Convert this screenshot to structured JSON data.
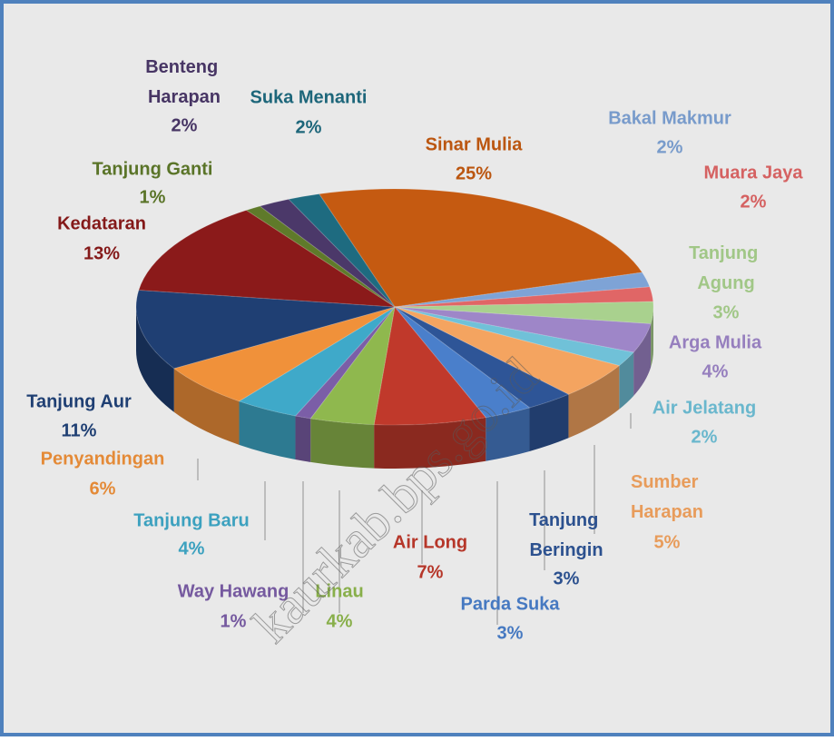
{
  "chart_data": {
    "type": "pie3d",
    "categories": [
      "Sinar Mulia",
      "Bakal Makmur",
      "Muara Jaya",
      "Tanjung Agung",
      "Arga Mulia",
      "Air Jelatang",
      "Sumber Harapan",
      "Tanjung Beringin",
      "Parda Suka",
      "Air Long",
      "Linau",
      "Way Hawang",
      "Tanjung Baru",
      "Penyandingan",
      "Tanjung Aur",
      "Kedataran",
      "Tanjung Ganti",
      "Benteng Harapan",
      "Suka Menanti"
    ],
    "values": [
      25,
      2,
      2,
      3,
      4,
      2,
      5,
      3,
      3,
      7,
      4,
      1,
      4,
      6,
      11,
      13,
      1,
      2,
      2
    ],
    "value_labels": [
      "25%",
      "2%",
      "2%",
      "3%",
      "4%",
      "2%",
      "5%",
      "3%",
      "3%",
      "7%",
      "4%",
      "1%",
      "4%",
      "6%",
      "11%",
      "13%",
      "1%",
      "2%",
      "2%"
    ],
    "colors": [
      "#c55a11",
      "#7ea3d6",
      "#e06666",
      "#a9d18e",
      "#9e86c8",
      "#70c1d8",
      "#f4a460",
      "#2e5597",
      "#4a7fcb",
      "#c0392b",
      "#8fb84e",
      "#7b5ea7",
      "#3fa9c9",
      "#f0913a",
      "#1f3f73",
      "#8b1a1a",
      "#5f7a2a",
      "#4b3869",
      "#1e6b80"
    ],
    "watermark": "kaurkab.bps.go.id"
  }
}
